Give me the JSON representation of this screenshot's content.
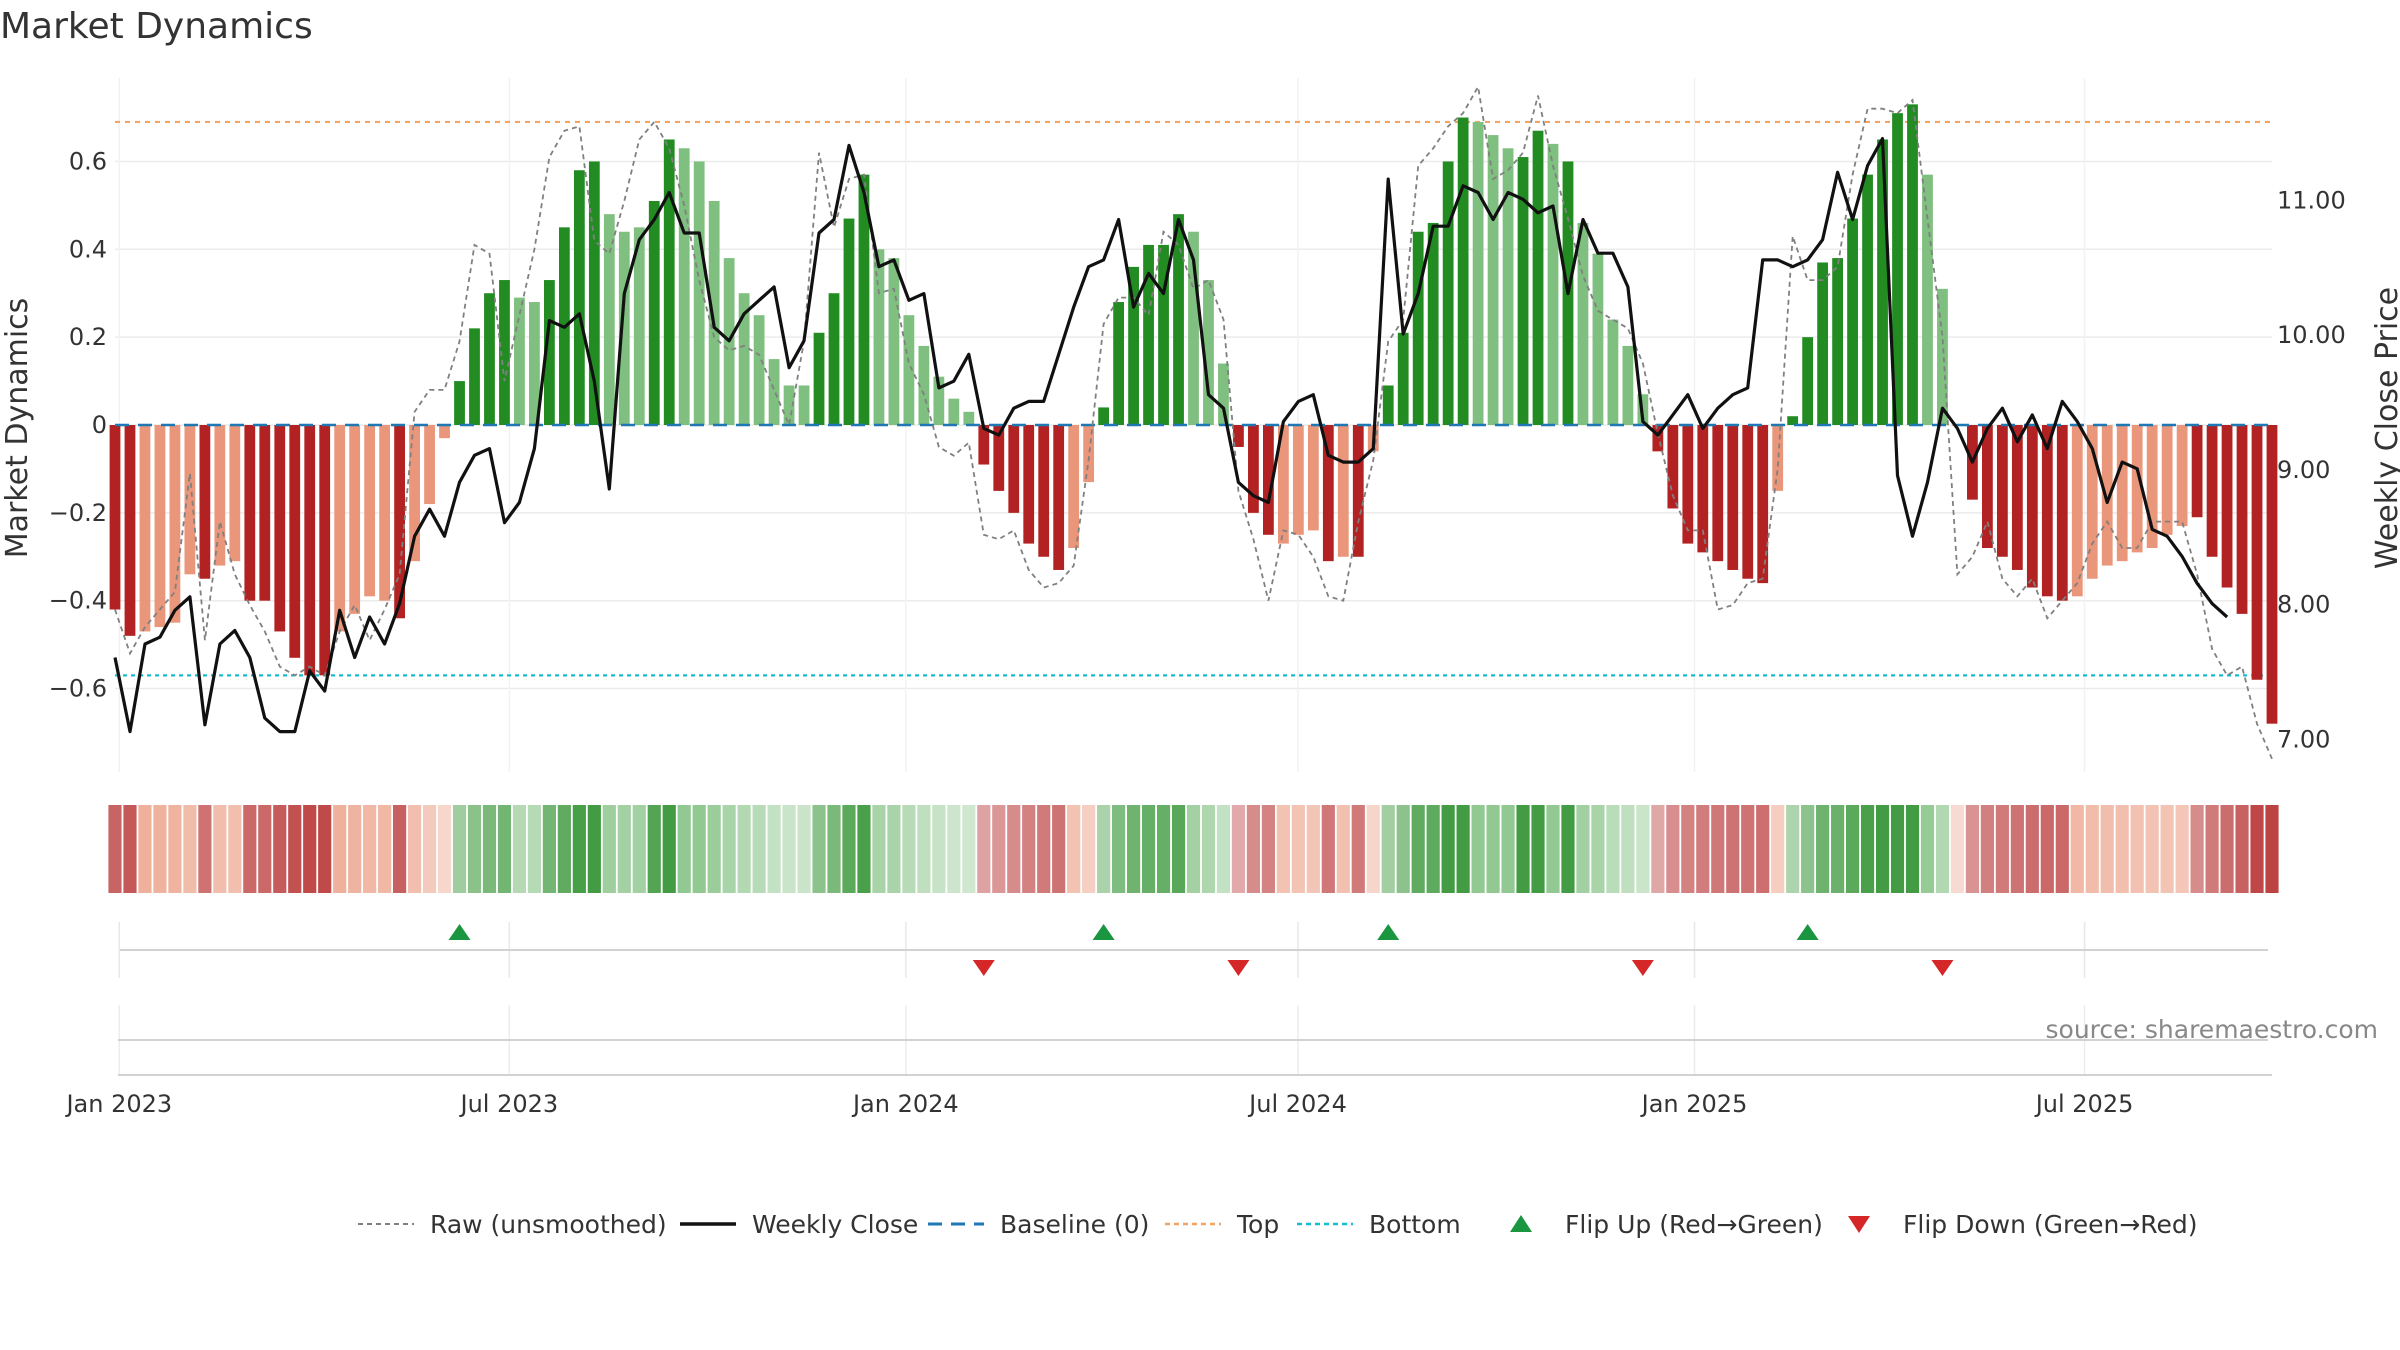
{
  "title": "Market Dynamics",
  "source": "source: sharemaestro.com",
  "colors": {
    "strong_green": "#228b22",
    "light_green": "#7fbf7f",
    "strong_red": "#b22222",
    "light_red": "#e9967a",
    "raw": "#808080",
    "close": "#111111",
    "baseline": "#1f77b4",
    "top": "#f4a460",
    "bottom": "#17becf",
    "flip_up": "#1a9641",
    "flip_down": "#d62728"
  },
  "chart_data": {
    "type": "bar",
    "title": "Market Dynamics",
    "ylabel": "Market Dynamics",
    "y2label": "Weekly Close Price",
    "ylim": [
      -0.79,
      0.79
    ],
    "y2lim": [
      6.75,
      11.9
    ],
    "y_ticks": [
      -0.6,
      -0.4,
      -0.2,
      0,
      0.2,
      0.4,
      0.6
    ],
    "y_tick_labels": [
      "−0.6",
      "−0.4",
      "−0.2",
      "0",
      "0.2",
      "0.4",
      "0.6"
    ],
    "y2_ticks": [
      7.0,
      8.0,
      9.0,
      10.0,
      11.0
    ],
    "y2_tick_labels": [
      "7.00",
      "8.00",
      "9.00",
      "10.00",
      "11.00"
    ],
    "x_start": "2022-12-30",
    "x_end": "2025-09-26",
    "x_ticks": [
      "2023-01-01",
      "2023-07-01",
      "2024-01-01",
      "2024-07-01",
      "2025-01-01",
      "2025-07-01"
    ],
    "x_tick_labels": [
      "Jan 2023",
      "Jul 2023",
      "Jan 2024",
      "Jul 2024",
      "Jan 2025",
      "Jul 2025"
    ],
    "top_line": 0.69,
    "bottom_line": -0.57,
    "baseline": 0,
    "grid": true,
    "legend_position": "bottom",
    "legend": [
      {
        "label": "Raw (unsmoothed)",
        "kind": "raw"
      },
      {
        "label": "Weekly Close",
        "kind": "close"
      },
      {
        "label": "Baseline (0)",
        "kind": "baseline"
      },
      {
        "label": "Top",
        "kind": "top"
      },
      {
        "label": "Bottom",
        "kind": "bottom"
      },
      {
        "label": "Flip Up (Red→Green)",
        "kind": "flip_up"
      },
      {
        "label": "Flip Down (Green→Red)",
        "kind": "flip_down"
      }
    ],
    "series": [
      {
        "name": "Market Dynamics",
        "values": [
          -0.42,
          -0.48,
          -0.47,
          -0.46,
          -0.45,
          -0.34,
          -0.35,
          -0.32,
          -0.31,
          -0.4,
          -0.4,
          -0.47,
          -0.53,
          -0.57,
          -0.57,
          -0.47,
          -0.43,
          -0.39,
          -0.4,
          -0.44,
          -0.31,
          -0.18,
          -0.03,
          0.1,
          0.22,
          0.3,
          0.33,
          0.29,
          0.28,
          0.33,
          0.45,
          0.58,
          0.6,
          0.48,
          0.44,
          0.45,
          0.51,
          0.65,
          0.63,
          0.6,
          0.51,
          0.38,
          0.3,
          0.25,
          0.15,
          0.09,
          0.09,
          0.21,
          0.3,
          0.47,
          0.57,
          0.4,
          0.38,
          0.25,
          0.18,
          0.11,
          0.06,
          0.03,
          -0.09,
          -0.15,
          -0.2,
          -0.27,
          -0.3,
          -0.33,
          -0.28,
          -0.13,
          0.04,
          0.28,
          0.36,
          0.41,
          0.41,
          0.48,
          0.44,
          0.33,
          0.14,
          -0.05,
          -0.2,
          -0.25,
          -0.27,
          -0.25,
          -0.24,
          -0.31,
          -0.3,
          -0.3,
          -0.06,
          0.09,
          0.21,
          0.44,
          0.46,
          0.6,
          0.7,
          0.69,
          0.66,
          0.63,
          0.61,
          0.67,
          0.64,
          0.6,
          0.46,
          0.39,
          0.24,
          0.18,
          0.07,
          -0.06,
          -0.19,
          -0.27,
          -0.29,
          -0.31,
          -0.33,
          -0.35,
          -0.36,
          -0.15,
          0.02,
          0.2,
          0.37,
          0.38,
          0.47,
          0.57,
          0.65,
          0.71,
          0.73,
          0.57,
          0.31,
          0.0,
          -0.17,
          -0.28,
          -0.3,
          -0.33,
          -0.37,
          -0.39,
          -0.4,
          -0.39,
          -0.35,
          -0.32,
          -0.31,
          -0.29,
          -0.28,
          -0.25,
          -0.23,
          -0.21,
          -0.3,
          -0.37,
          -0.43,
          -0.58,
          -0.68
        ],
        "colors": [
          "SR",
          "SR",
          "LR",
          "LR",
          "LR",
          "LR",
          "SR",
          "LR",
          "LR",
          "SR",
          "SR",
          "SR",
          "SR",
          "SR",
          "SR",
          "LR",
          "LR",
          "LR",
          "LR",
          "SR",
          "LR",
          "LR",
          "LR",
          "SG",
          "SG",
          "SG",
          "SG",
          "LG",
          "LG",
          "SG",
          "SG",
          "SG",
          "SG",
          "LG",
          "LG",
          "LG",
          "SG",
          "SG",
          "LG",
          "LG",
          "LG",
          "LG",
          "LG",
          "LG",
          "LG",
          "LG",
          "LG",
          "SG",
          "SG",
          "SG",
          "SG",
          "LG",
          "LG",
          "LG",
          "LG",
          "LG",
          "LG",
          "LG",
          "SR",
          "SR",
          "SR",
          "SR",
          "SR",
          "SR",
          "LR",
          "LR",
          "SG",
          "SG",
          "SG",
          "SG",
          "SG",
          "SG",
          "LG",
          "LG",
          "LG",
          "SR",
          "SR",
          "SR",
          "LR",
          "LR",
          "LR",
          "SR",
          "LR",
          "SR",
          "LR",
          "SG",
          "SG",
          "SG",
          "SG",
          "SG",
          "SG",
          "LG",
          "LG",
          "LG",
          "SG",
          "SG",
          "LG",
          "SG",
          "LG",
          "LG",
          "LG",
          "LG",
          "LG",
          "SR",
          "SR",
          "SR",
          "SR",
          "SR",
          "SR",
          "SR",
          "SR",
          "LR",
          "SG",
          "SG",
          "SG",
          "SG",
          "SG",
          "SG",
          "SG",
          "SG",
          "SG",
          "LG",
          "LG",
          "LR",
          "SR",
          "SR",
          "SR",
          "SR",
          "SR",
          "SR",
          "SR",
          "LR",
          "LR",
          "LR",
          "LR",
          "LR",
          "LR",
          "LR",
          "LR",
          "SR",
          "SR",
          "SR",
          "SR",
          "SR",
          "SR"
        ]
      },
      {
        "name": "Raw (unsmoothed)",
        "values": [
          -0.42,
          -0.52,
          -0.46,
          -0.42,
          -0.38,
          -0.11,
          -0.49,
          -0.22,
          -0.34,
          -0.41,
          -0.47,
          -0.55,
          -0.57,
          -0.55,
          -0.57,
          -0.47,
          -0.41,
          -0.49,
          -0.42,
          -0.34,
          0.03,
          0.08,
          0.08,
          0.19,
          0.41,
          0.39,
          0.1,
          0.25,
          0.4,
          0.61,
          0.67,
          0.68,
          0.42,
          0.39,
          0.51,
          0.65,
          0.69,
          0.63,
          0.5,
          0.33,
          0.2,
          0.17,
          0.18,
          0.16,
          0.08,
          0.0,
          0.19,
          0.62,
          0.45,
          0.56,
          0.57,
          0.3,
          0.31,
          0.14,
          0.07,
          -0.05,
          -0.07,
          -0.04,
          -0.25,
          -0.26,
          -0.24,
          -0.33,
          -0.37,
          -0.36,
          -0.32,
          -0.08,
          0.23,
          0.29,
          0.29,
          0.25,
          0.44,
          0.41,
          0.31,
          0.33,
          0.24,
          -0.15,
          -0.26,
          -0.4,
          -0.24,
          -0.25,
          -0.3,
          -0.39,
          -0.4,
          -0.22,
          -0.08,
          0.19,
          0.24,
          0.59,
          0.63,
          0.68,
          0.71,
          0.77,
          0.56,
          0.58,
          0.62,
          0.75,
          0.59,
          0.47,
          0.34,
          0.26,
          0.24,
          0.22,
          0.14,
          -0.02,
          -0.16,
          -0.24,
          -0.24,
          -0.42,
          -0.41,
          -0.36,
          -0.35,
          -0.1,
          0.43,
          0.33,
          0.33,
          0.36,
          0.57,
          0.72,
          0.72,
          0.71,
          0.74,
          0.47,
          0.2,
          -0.34,
          -0.3,
          -0.22,
          -0.35,
          -0.39,
          -0.35,
          -0.44,
          -0.4,
          -0.36,
          -0.27,
          -0.22,
          -0.28,
          -0.28,
          -0.22,
          -0.22,
          -0.22,
          -0.34,
          -0.51,
          -0.57,
          -0.55,
          -0.68,
          -0.76
        ]
      },
      {
        "name": "Weekly Close",
        "values": [
          7.6,
          7.05,
          7.7,
          7.75,
          7.95,
          8.05,
          7.1,
          7.7,
          7.8,
          7.6,
          7.15,
          7.05,
          7.05,
          7.5,
          7.35,
          7.95,
          7.6,
          7.9,
          7.7,
          8.0,
          8.5,
          8.7,
          8.5,
          8.9,
          9.1,
          9.15,
          8.6,
          8.75,
          9.15,
          10.1,
          10.05,
          10.15,
          9.65,
          8.85,
          10.3,
          10.7,
          10.85,
          11.05,
          10.75,
          10.75,
          10.05,
          9.95,
          10.15,
          10.25,
          10.35,
          9.75,
          9.95,
          10.75,
          10.85,
          11.4,
          11.05,
          10.5,
          10.55,
          10.25,
          10.3,
          9.6,
          9.65,
          9.85,
          9.3,
          9.25,
          9.45,
          9.5,
          9.5,
          9.85,
          10.2,
          10.5,
          10.55,
          10.85,
          10.2,
          10.45,
          10.3,
          10.85,
          10.55,
          9.55,
          9.45,
          8.9,
          8.8,
          8.75,
          9.35,
          9.5,
          9.55,
          9.1,
          9.05,
          9.05,
          9.15,
          11.15,
          10.0,
          10.3,
          10.8,
          10.8,
          11.1,
          11.05,
          10.85,
          11.05,
          11.0,
          10.9,
          10.95,
          10.3,
          10.85,
          10.6,
          10.6,
          10.35,
          9.35,
          9.25,
          9.4,
          9.55,
          9.3,
          9.45,
          9.55,
          9.6,
          10.55,
          10.55,
          10.5,
          10.55,
          10.7,
          11.2,
          10.85,
          11.25,
          11.45,
          8.95,
          8.5,
          8.9,
          9.45,
          9.3,
          9.05,
          9.3,
          9.45,
          9.2,
          9.4,
          9.15,
          9.5,
          9.35,
          9.15,
          8.75,
          9.05,
          9.0,
          8.55,
          8.5,
          8.35,
          8.15,
          8.0,
          7.9
        ]
      }
    ],
    "flip_up_weeks": [
      23,
      66,
      85,
      113
    ],
    "flip_down_weeks": [
      58,
      75,
      102,
      122
    ]
  }
}
